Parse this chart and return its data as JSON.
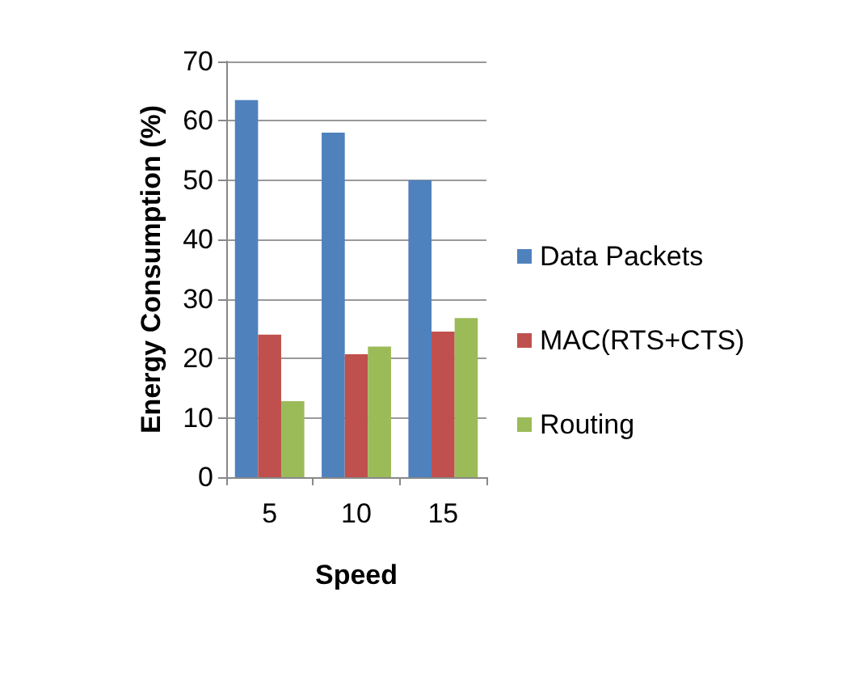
{
  "chart_data": {
    "type": "bar",
    "xlabel": "Speed",
    "ylabel": "Energy Consumption (%)",
    "categories": [
      "5",
      "10",
      "15"
    ],
    "series": [
      {
        "name": "Data Packets",
        "color": "#4f81bd",
        "values": [
          63.5,
          58,
          50
        ]
      },
      {
        "name": "MAC(RTS+CTS)",
        "color": "#c0504d",
        "values": [
          24,
          20.7,
          24.5
        ]
      },
      {
        "name": "Routing",
        "color": "#9bbb59",
        "values": [
          12.8,
          22,
          26.8
        ]
      }
    ],
    "ylim": [
      0,
      70
    ],
    "yticks": [
      0,
      10,
      20,
      30,
      40,
      50,
      60,
      70
    ],
    "grid": "y",
    "legend": "right"
  }
}
